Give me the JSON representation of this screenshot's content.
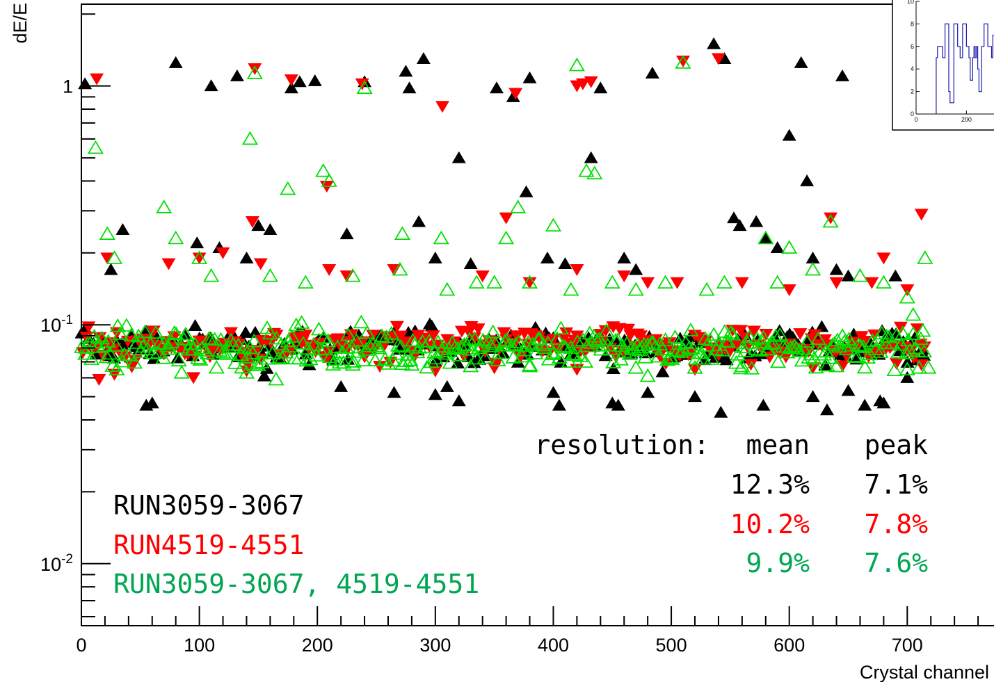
{
  "chart_data": [
    {
      "type": "scatter",
      "title": "",
      "xlabel": "Crystal channel",
      "ylabel": "dE/E",
      "xlim": [
        0,
        780
      ],
      "ylim": [
        0.0055,
        2.2
      ],
      "log_y": true,
      "grid": false,
      "x_ticks": [
        "0",
        "100",
        "200",
        "300",
        "400",
        "500",
        "600",
        "700"
      ],
      "y_tick_labels": [
        {
          "value": 1,
          "text": "1"
        },
        {
          "value": 0.1,
          "base": "10",
          "exp": "-1"
        },
        {
          "value": 0.01,
          "base": "10",
          "exp": "-2"
        }
      ],
      "legend": {
        "placement": "bottom-left",
        "entries": [
          {
            "label": "RUN3059-3067",
            "color": "#000000"
          },
          {
            "label": "RUN4519-4551",
            "color": "#ff0000"
          },
          {
            "label": "RUN3059-3067, 4519-4551",
            "color": "#00a651"
          }
        ]
      },
      "resolution_table": {
        "header_label": "resolution:",
        "col_mean": "mean",
        "col_peak": "peak",
        "rows": [
          {
            "mean": "12.3%",
            "peak": "7.1%",
            "color": "#000000"
          },
          {
            "mean": "10.2%",
            "peak": "7.8%",
            "color": "#ff0000"
          },
          {
            "mean": "9.9%",
            "peak": "7.6%",
            "color": "#00a651"
          }
        ]
      },
      "series": [
        {
          "marker": "triangle-up-filled",
          "color": "#000000",
          "channels": [
            0,
            714
          ],
          "baseline": 0.082,
          "outliers": [
            [
              3,
              1.02
            ],
            [
              80,
              1.25
            ],
            [
              110,
              1.0
            ],
            [
              132,
              1.1
            ],
            [
              178,
              0.98
            ],
            [
              185,
              1.04
            ],
            [
              198,
              1.05
            ],
            [
              240,
              1.04
            ],
            [
              275,
              1.15
            ],
            [
              278,
              0.98
            ],
            [
              290,
              1.3
            ],
            [
              352,
              0.98
            ],
            [
              366,
              0.9
            ],
            [
              380,
              1.08
            ],
            [
              440,
              0.98
            ],
            [
              484,
              1.13
            ],
            [
              536,
              1.5
            ],
            [
              545,
              1.3
            ],
            [
              610,
              1.25
            ],
            [
              645,
              1.1
            ],
            [
              320,
              0.5
            ],
            [
              432,
              0.5
            ],
            [
              600,
              0.62
            ],
            [
              615,
              0.4
            ],
            [
              377,
              0.36
            ],
            [
              553,
              0.28
            ],
            [
              558,
              0.26
            ],
            [
              572,
              0.27
            ],
            [
              35,
              0.25
            ],
            [
              150,
              0.26
            ],
            [
              160,
              0.25
            ],
            [
              225,
              0.24
            ],
            [
              286,
              0.27
            ],
            [
              580,
              0.23
            ],
            [
              590,
              0.21
            ],
            [
              620,
              0.19
            ],
            [
              25,
              0.17
            ],
            [
              98,
              0.22
            ],
            [
              117,
              0.21
            ],
            [
              140,
              0.19
            ],
            [
              300,
              0.19
            ],
            [
              330,
              0.18
            ],
            [
              395,
              0.19
            ],
            [
              410,
              0.18
            ],
            [
              460,
              0.19
            ],
            [
              470,
              0.17
            ],
            [
              640,
              0.17
            ],
            [
              650,
              0.16
            ],
            [
              690,
              0.16
            ],
            [
              55,
              0.046
            ],
            [
              60,
              0.047
            ],
            [
              155,
              0.061
            ],
            [
              220,
              0.055
            ],
            [
              265,
              0.052
            ],
            [
              300,
              0.051
            ],
            [
              310,
              0.055
            ],
            [
              320,
              0.048
            ],
            [
              400,
              0.052
            ],
            [
              405,
              0.046
            ],
            [
              450,
              0.047
            ],
            [
              455,
              0.046
            ],
            [
              480,
              0.052
            ],
            [
              520,
              0.05
            ],
            [
              542,
              0.043
            ],
            [
              578,
              0.046
            ],
            [
              620,
              0.05
            ],
            [
              632,
              0.044
            ],
            [
              650,
              0.053
            ],
            [
              664,
              0.046
            ],
            [
              677,
              0.048
            ],
            [
              680,
              0.047
            ],
            [
              700,
              0.06
            ]
          ]
        },
        {
          "marker": "triangle-down-filled",
          "color": "#ff0000",
          "channels": [
            0,
            714
          ],
          "baseline": 0.081,
          "outliers": [
            [
              13,
              1.07
            ],
            [
              147,
              1.18
            ],
            [
              178,
              1.06
            ],
            [
              238,
              1.02
            ],
            [
              306,
              0.82
            ],
            [
              368,
              0.93
            ],
            [
              420,
              1.0
            ],
            [
              425,
              1.02
            ],
            [
              432,
              1.04
            ],
            [
              510,
              1.27
            ],
            [
              540,
              1.3
            ],
            [
              145,
              0.27
            ],
            [
              208,
              0.38
            ],
            [
              360,
              0.28
            ],
            [
              635,
              0.28
            ],
            [
              712,
              0.29
            ],
            [
              22,
              0.19
            ],
            [
              74,
              0.18
            ],
            [
              100,
              0.19
            ],
            [
              120,
              0.2
            ],
            [
              152,
              0.18
            ],
            [
              210,
              0.17
            ],
            [
              225,
              0.16
            ],
            [
              265,
              0.17
            ],
            [
              340,
              0.16
            ],
            [
              380,
              0.15
            ],
            [
              420,
              0.17
            ],
            [
              460,
              0.16
            ],
            [
              480,
              0.15
            ],
            [
              505,
              0.15
            ],
            [
              560,
              0.15
            ],
            [
              600,
              0.14
            ],
            [
              640,
              0.15
            ],
            [
              670,
              0.15
            ],
            [
              680,
              0.19
            ],
            [
              700,
              0.14
            ],
            [
              15,
              0.059
            ],
            [
              28,
              0.062
            ],
            [
              95,
              0.06
            ],
            [
              140,
              0.064
            ],
            [
              300,
              0.064
            ],
            [
              350,
              0.066
            ],
            [
              420,
              0.065
            ],
            [
              520,
              0.065
            ],
            [
              620,
              0.066
            ],
            [
              712,
              0.068
            ]
          ]
        },
        {
          "marker": "triangle-up-open",
          "color": "#00e000",
          "channels": [
            0,
            714
          ],
          "baseline": 0.08,
          "outliers": [
            [
              12,
              0.55
            ],
            [
              70,
              0.31
            ],
            [
              100,
              0.19
            ],
            [
              143,
              0.6
            ],
            [
              147,
              1.13
            ],
            [
              175,
              0.37
            ],
            [
              205,
              0.44
            ],
            [
              210,
              0.4
            ],
            [
              240,
              0.98
            ],
            [
              272,
              0.24
            ],
            [
              305,
              0.23
            ],
            [
              360,
              0.23
            ],
            [
              370,
              0.31
            ],
            [
              400,
              0.26
            ],
            [
              420,
              1.22
            ],
            [
              428,
              0.44
            ],
            [
              435,
              0.43
            ],
            [
              450,
              0.15
            ],
            [
              510,
              1.25
            ],
            [
              600,
              0.21
            ],
            [
              620,
              0.17
            ],
            [
              635,
              0.27
            ],
            [
              660,
              0.16
            ],
            [
              715,
              0.19
            ],
            [
              22,
              0.24
            ],
            [
              28,
              0.19
            ],
            [
              80,
              0.23
            ],
            [
              110,
              0.16
            ],
            [
              160,
              0.16
            ],
            [
              190,
              0.15
            ],
            [
              230,
              0.16
            ],
            [
              270,
              0.17
            ],
            [
              310,
              0.14
            ],
            [
              335,
              0.15
            ],
            [
              350,
              0.15
            ],
            [
              380,
              0.15
            ],
            [
              415,
              0.14
            ],
            [
              470,
              0.14
            ],
            [
              495,
              0.15
            ],
            [
              530,
              0.14
            ],
            [
              545,
              0.15
            ],
            [
              580,
              0.23
            ],
            [
              590,
              0.15
            ],
            [
              680,
              0.15
            ],
            [
              700,
              0.13
            ],
            [
              705,
              0.11
            ],
            [
              30,
              0.065
            ],
            [
              85,
              0.063
            ],
            [
              140,
              0.063
            ],
            [
              165,
              0.059
            ],
            [
              230,
              0.068
            ],
            [
              280,
              0.068
            ],
            [
              330,
              0.067
            ],
            [
              380,
              0.067
            ],
            [
              470,
              0.066
            ],
            [
              480,
              0.061
            ],
            [
              520,
              0.066
            ],
            [
              560,
              0.067
            ],
            [
              640,
              0.067
            ],
            [
              700,
              0.065
            ],
            [
              710,
              0.066
            ],
            [
              718,
              0.066
            ]
          ]
        }
      ]
    },
    {
      "type": "bar",
      "title": "",
      "xlabel": "",
      "ylabel": "",
      "placement": "top-right inset (clipped)",
      "xlim": [
        0,
        340
      ],
      "ylim": [
        0,
        10
      ],
      "x_ticks": [
        "0",
        "200"
      ],
      "y_ticks": [
        "0",
        "2",
        "4",
        "6",
        "8",
        "10"
      ],
      "bin_width": 5,
      "x_start": 80,
      "values": [
        5,
        6,
        6,
        6,
        6,
        5,
        5,
        8,
        8,
        8,
        2,
        1,
        1,
        1,
        8,
        8,
        8,
        6,
        6,
        5,
        5,
        8,
        8,
        8,
        6,
        6,
        5,
        3,
        3,
        5,
        6,
        5,
        6,
        4,
        2,
        2,
        6,
        6,
        8,
        8,
        8,
        6,
        6,
        6,
        5,
        7,
        7,
        7,
        6,
        5,
        4,
        4,
        3,
        4,
        5,
        7,
        8,
        9
      ]
    }
  ]
}
